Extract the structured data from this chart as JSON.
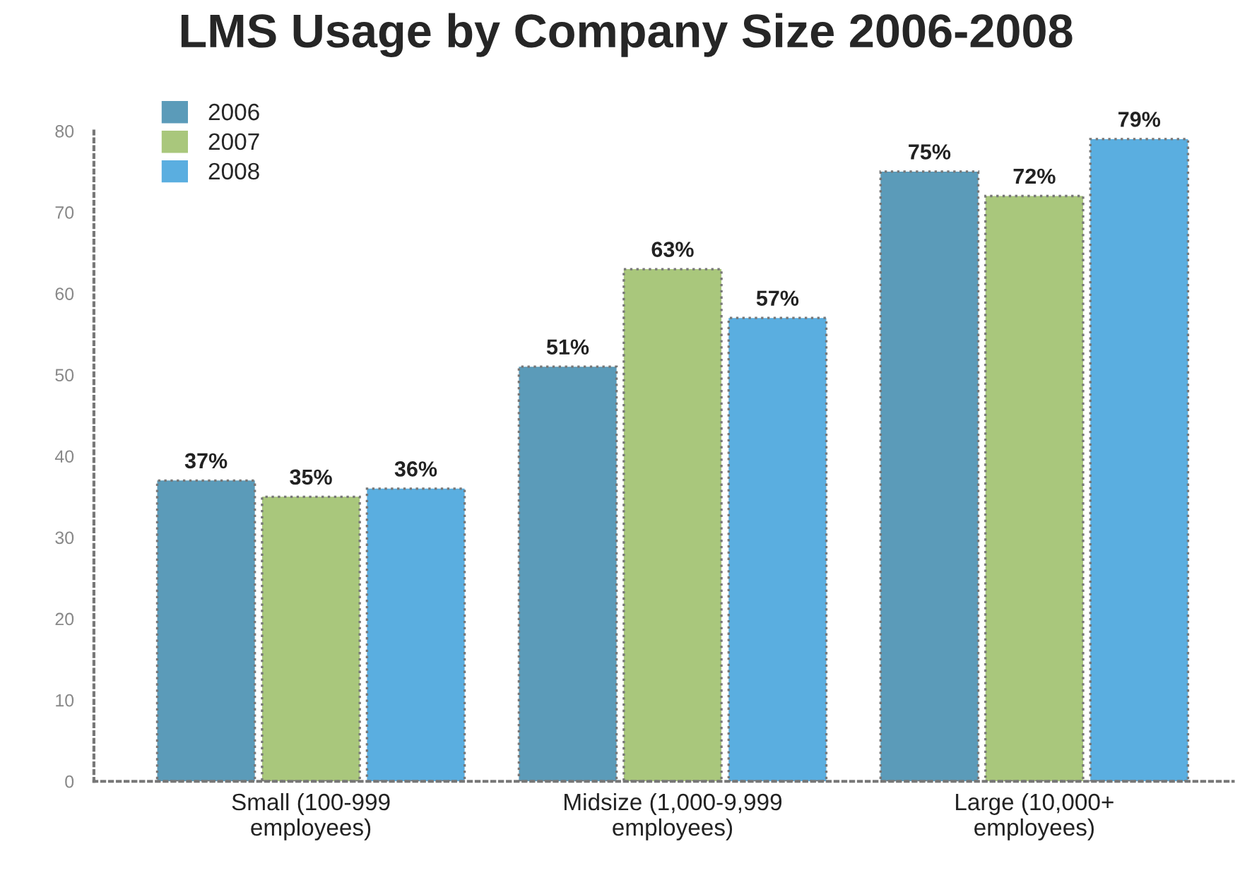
{
  "chart_data": {
    "type": "bar",
    "title": "LMS Usage by Company Size 2006-2008",
    "categories": [
      "Small (100-999\nemployees)",
      "Midsize (1,000-9,999\nemployees)",
      "Large (10,000+\nemployees)"
    ],
    "series": [
      {
        "name": "2006",
        "color": "#5b9bb9",
        "values": [
          37,
          51,
          75
        ],
        "value_labels": [
          "37%",
          "51%",
          "75%"
        ]
      },
      {
        "name": "2007",
        "color": "#a9c77c",
        "values": [
          35,
          63,
          72
        ],
        "value_labels": [
          "35%",
          "63%",
          "72%"
        ]
      },
      {
        "name": "2008",
        "color": "#5aaee0",
        "values": [
          36,
          57,
          79
        ],
        "value_labels": [
          "36%",
          "57%",
          "79%"
        ]
      }
    ],
    "ylim": [
      0,
      80
    ],
    "yticks": [
      0,
      10,
      20,
      30,
      40,
      50,
      60,
      70,
      80
    ],
    "grid": false,
    "legend": "top left"
  }
}
